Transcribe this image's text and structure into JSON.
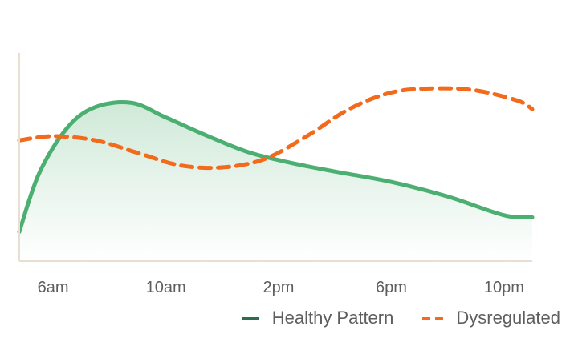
{
  "chart_data": {
    "type": "area",
    "x_ticks": [
      "6am",
      "10am",
      "2pm",
      "6pm",
      "10pm"
    ],
    "x_domain": [
      4.8,
      23.0
    ],
    "x_tick_values": [
      6,
      10,
      14,
      18,
      22
    ],
    "y_range": [
      0,
      10
    ],
    "grid": false,
    "legend_position": "bottom-right",
    "series": [
      {
        "name": "Healthy Pattern",
        "style": "solid-area",
        "color": "#4caf72",
        "x": [
          4.8,
          5.5,
          6.5,
          7.5,
          8.8,
          10,
          11.5,
          13,
          14.5,
          16,
          18,
          20,
          22,
          23
        ],
        "y": [
          1.4,
          4.2,
          6.4,
          7.4,
          7.6,
          6.9,
          6.0,
          5.2,
          4.7,
          4.3,
          3.8,
          3.1,
          2.2,
          2.1
        ]
      },
      {
        "name": "Dysregulated",
        "style": "dashed",
        "color": "#f26a1b",
        "x": [
          4.8,
          6,
          7.5,
          9,
          10.5,
          12,
          13.5,
          15,
          16.5,
          18,
          19.5,
          21,
          22.5,
          23
        ],
        "y": [
          5.8,
          6.0,
          5.8,
          5.2,
          4.6,
          4.5,
          4.9,
          6.0,
          7.3,
          8.1,
          8.3,
          8.2,
          7.7,
          7.3
        ]
      }
    ]
  },
  "colors": {
    "axis": "#e8ded2",
    "healthy_fill_top": "#cfe9d8",
    "healthy_fill_bottom": "#ffffff"
  },
  "legend": {
    "healthy_label": "Healthy Pattern",
    "dysregulated_label": "Dysregulated"
  }
}
